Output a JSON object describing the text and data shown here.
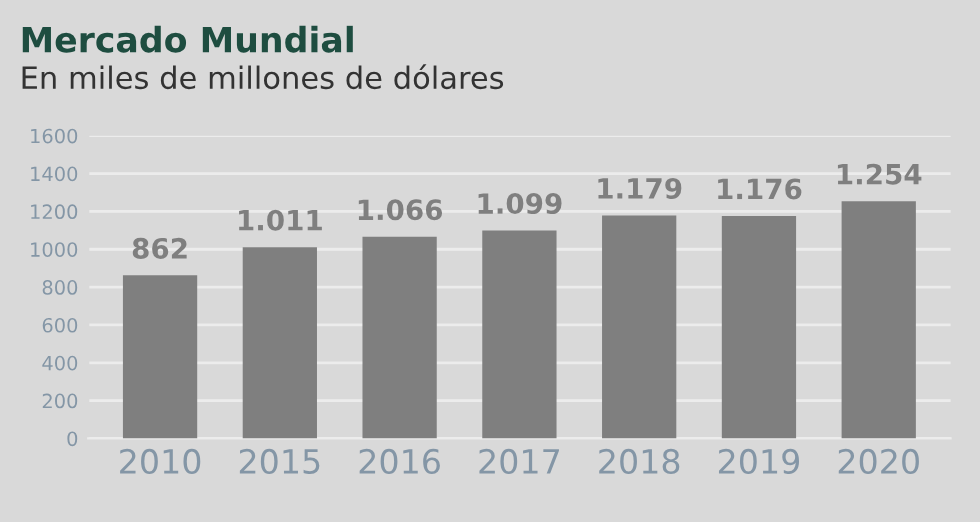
{
  "chart_data": {
    "type": "bar",
    "title": "Mercado Mundial",
    "subtitle": "En miles de millones de dólares",
    "categories": [
      "2010",
      "2015",
      "2016",
      "2017",
      "2018",
      "2019",
      "2020"
    ],
    "values": [
      862,
      1011,
      1066,
      1099,
      1179,
      1176,
      1254
    ],
    "value_labels": [
      "862",
      "1.011",
      "1.066",
      "1.099",
      "1.179",
      "1.176",
      "1.254"
    ],
    "color": "#7f7f7f",
    "ylim": [
      0,
      1600
    ],
    "yticks": [
      0,
      200,
      400,
      600,
      800,
      1000,
      1200,
      1400,
      1600
    ],
    "grid": "y"
  }
}
